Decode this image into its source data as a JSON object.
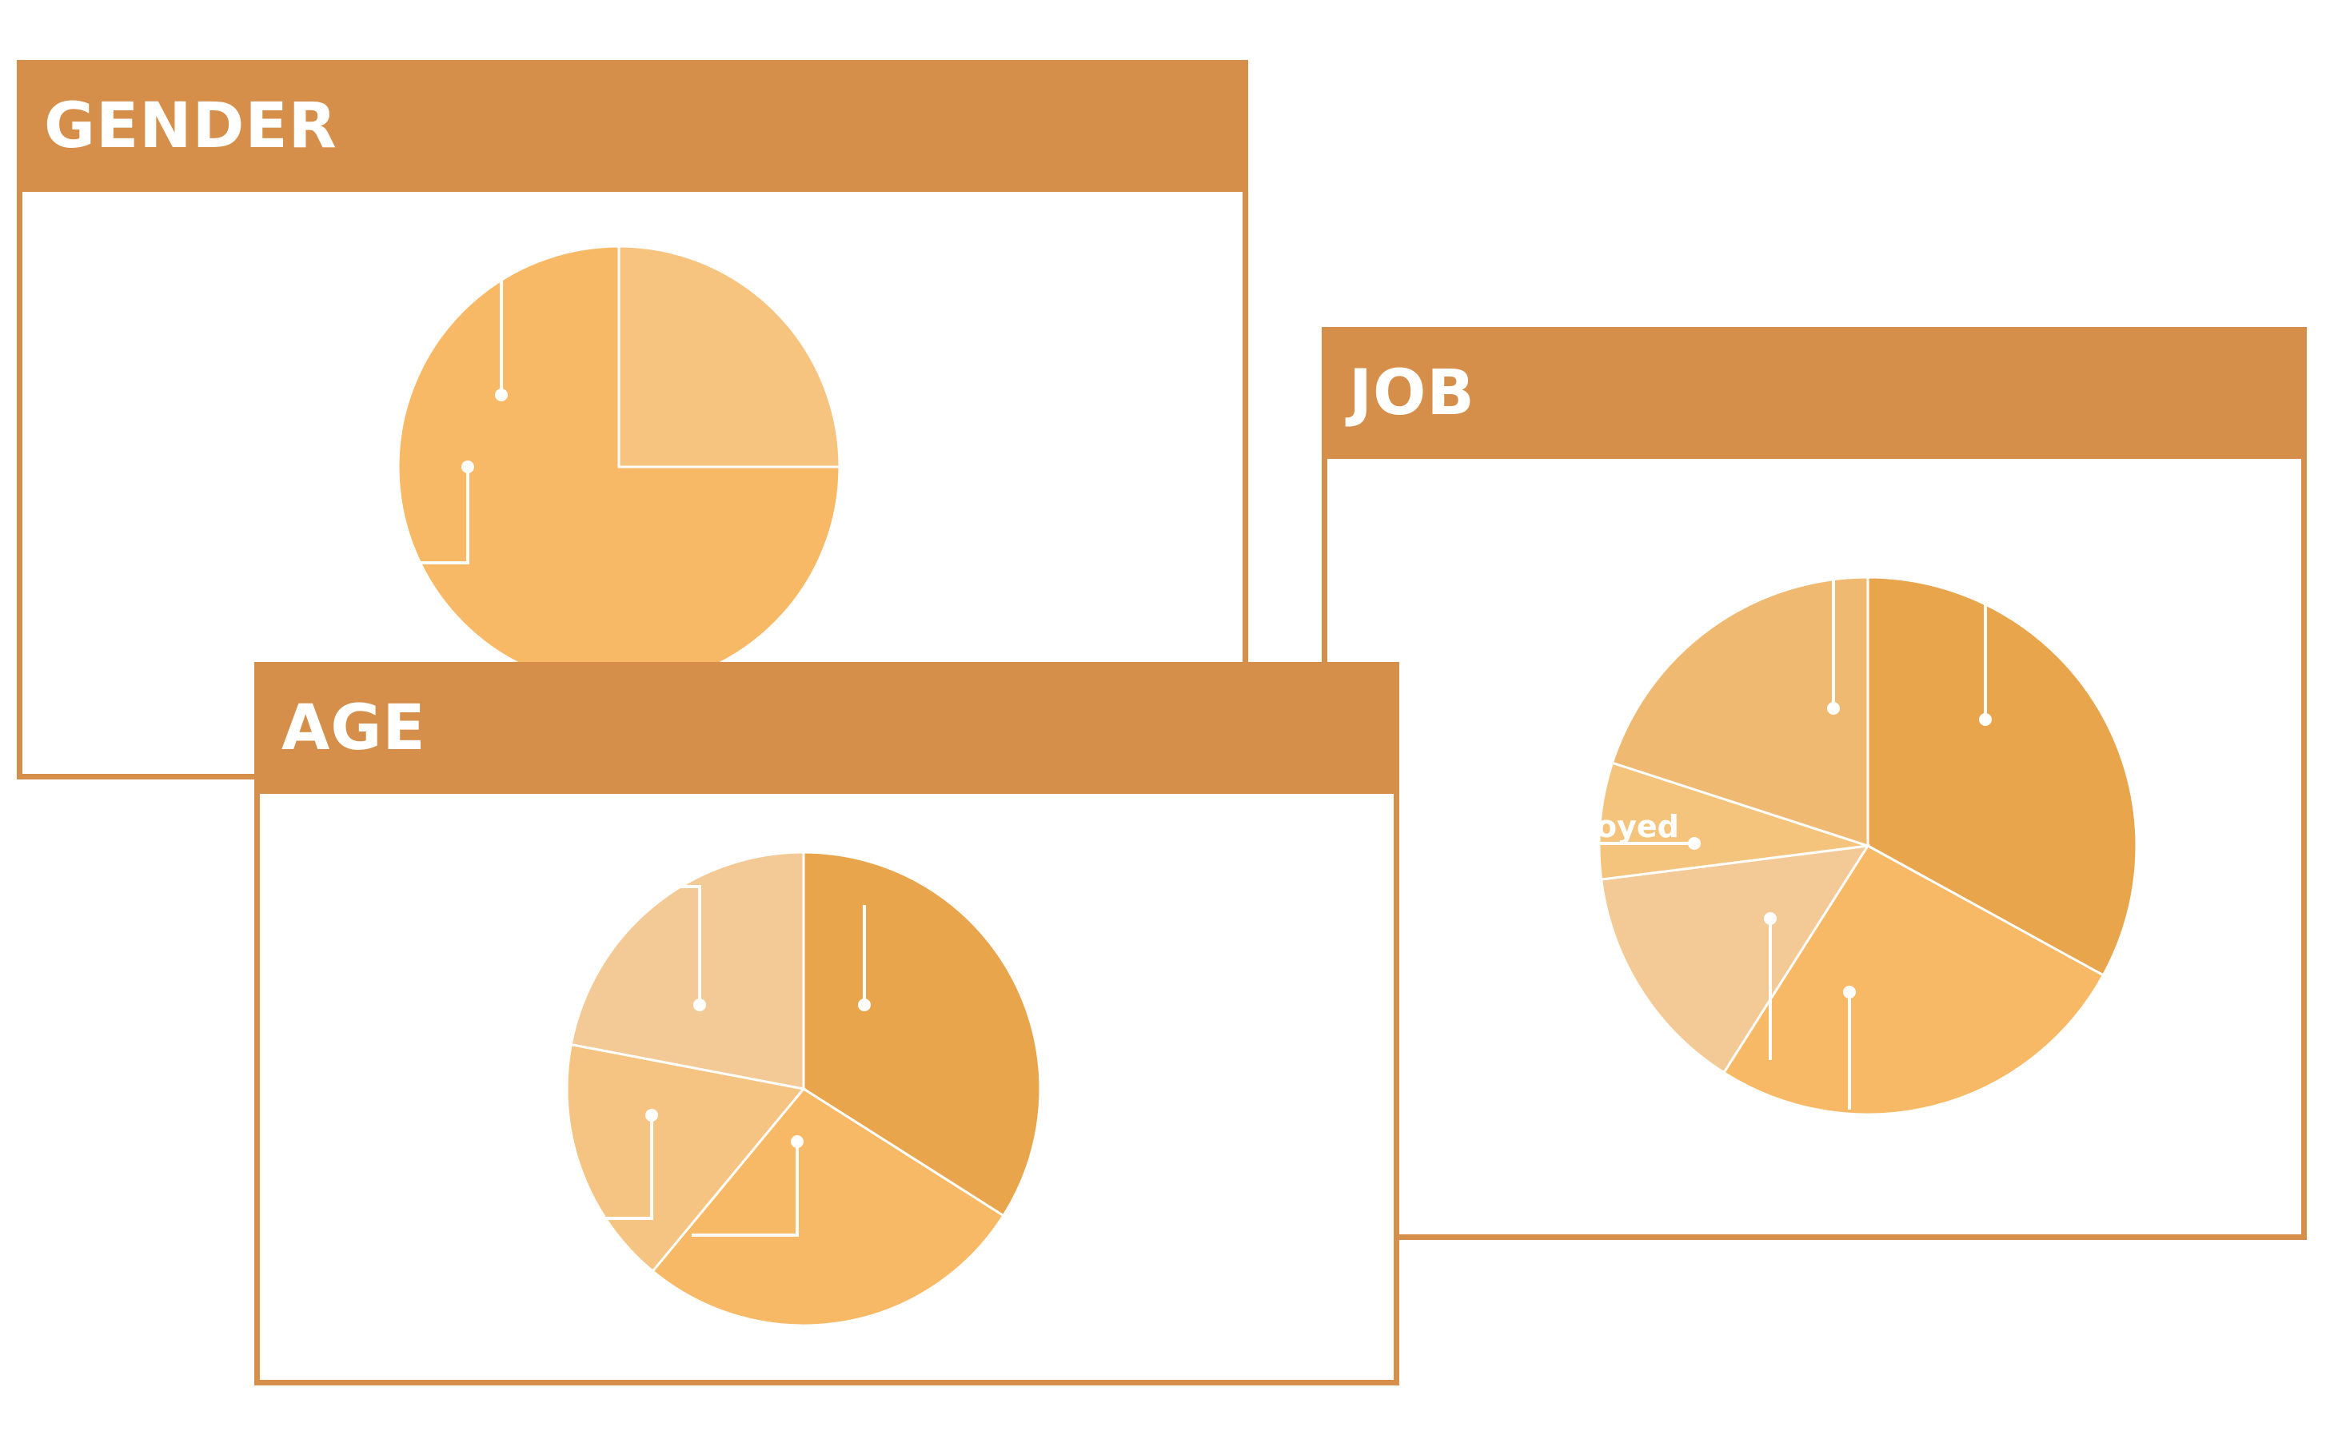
{
  "colors": {
    "frame": "#D68F4A",
    "slice_light": "#F4C88A",
    "slice_main": "#F7B965",
    "slice_dark": "#E8A54C",
    "slice_pale": "#F3C996",
    "slice_soft": "#EFB972",
    "leader": "#ffffff"
  },
  "panels": {
    "gender": {
      "title": "GENDER"
    },
    "age": {
      "title": "AGE"
    },
    "job": {
      "title": "JOB",
      "partial_label": "oyed"
    }
  },
  "chart_data": [
    {
      "type": "pie",
      "title": "GENDER",
      "categories": [
        "",
        ""
      ],
      "values": [
        25,
        75
      ],
      "colors": [
        "#F6C47E",
        "#F7B965"
      ]
    },
    {
      "type": "pie",
      "title": "AGE",
      "categories": [
        "",
        "",
        "",
        ""
      ],
      "values": [
        34,
        27,
        17,
        22
      ],
      "colors": [
        "#E8A54C",
        "#F7B965",
        "#F5C482",
        "#F3C996"
      ]
    },
    {
      "type": "pie",
      "title": "JOB",
      "categories": [
        "",
        "",
        "",
        "",
        ""
      ],
      "values": [
        33,
        26,
        14,
        7,
        20
      ],
      "colors": [
        "#E8A54C",
        "#F7B965",
        "#F3C996",
        "#F5C47C",
        "#EFB972"
      ]
    }
  ]
}
